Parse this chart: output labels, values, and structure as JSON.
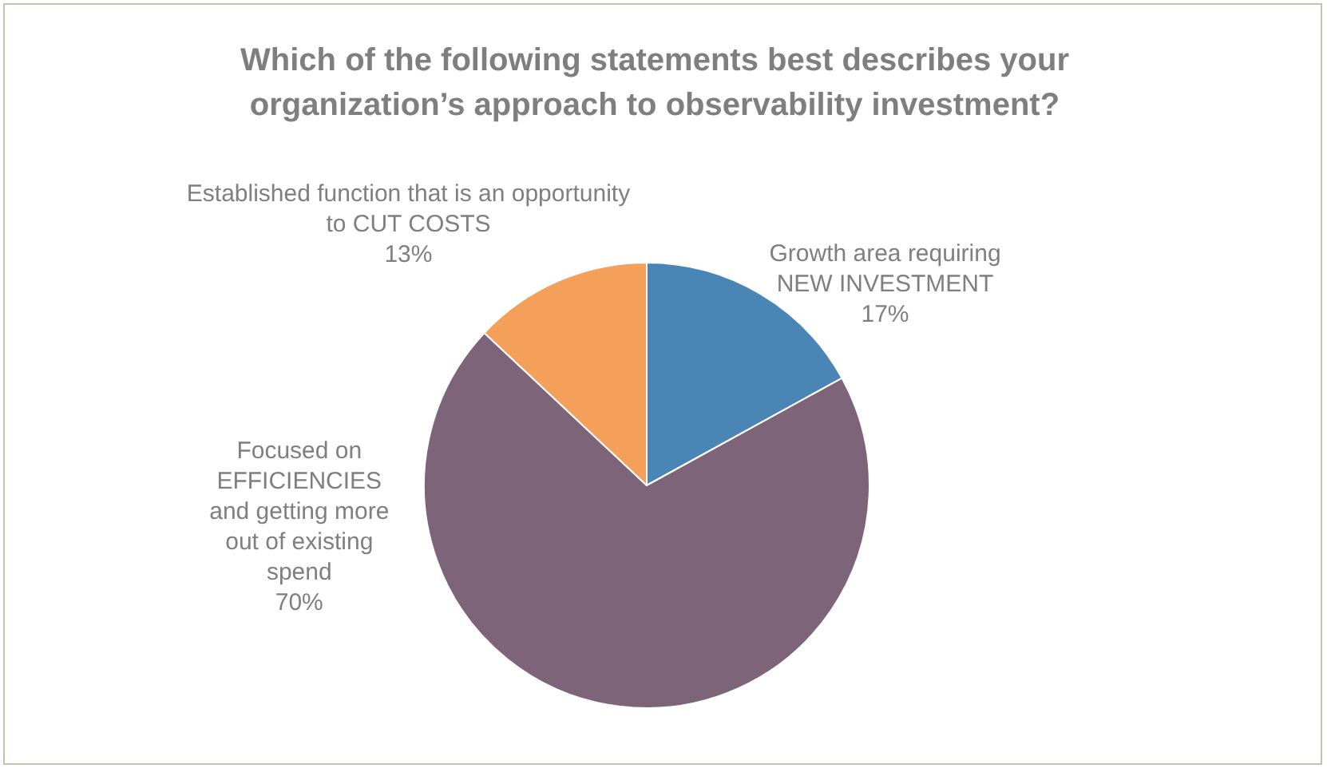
{
  "chart_data": {
    "type": "pie",
    "title": "Which of the following statements best describes your organization’s approach to observability investment?",
    "categories": [
      "Growth area requiring NEW INVESTMENT",
      "Focused on EFFICIENCIES and getting more out of existing spend",
      "Established function that is an opportunity to CUT COSTS"
    ],
    "values": [
      17,
      70,
      13
    ],
    "value_labels": [
      "17%",
      "70%",
      "13%"
    ],
    "colors": [
      "#4a86b5",
      "#7e6479",
      "#f5a05a"
    ],
    "legend": false
  }
}
